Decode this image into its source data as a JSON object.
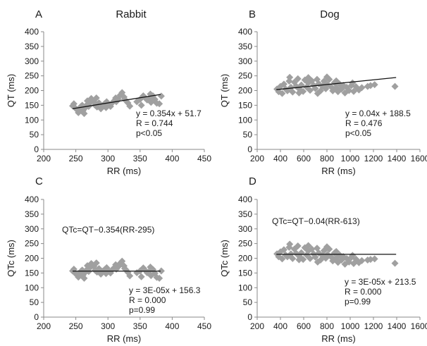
{
  "colors": {
    "marker": "#a0a0a0",
    "trend": "#111111",
    "axis": "#8a8a8a"
  },
  "chart_data": [
    {
      "type": "scatter",
      "panel": "A",
      "title": "Rabbit",
      "xlabel": "RR (ms)",
      "ylabel": "QT (ms)",
      "xlim": [
        200,
        450
      ],
      "ylim": [
        0,
        400
      ],
      "xticks": [
        200,
        250,
        300,
        350,
        400,
        450
      ],
      "yticks": [
        0,
        50,
        100,
        150,
        200,
        250,
        300,
        350,
        400
      ],
      "marker": "diamond",
      "trendline": {
        "slope": 0.354,
        "intercept": 51.7,
        "x_range": [
          245,
          382
        ]
      },
      "annotations": [
        "y = 0.354x + 51.7",
        "R = 0.744",
        "p<0.05"
      ],
      "formula": "",
      "points": [
        [
          245,
          148
        ],
        [
          247,
          155
        ],
        [
          249,
          141
        ],
        [
          252,
          134
        ],
        [
          254,
          125
        ],
        [
          256,
          138
        ],
        [
          258,
          146
        ],
        [
          261,
          131
        ],
        [
          263,
          122
        ],
        [
          265,
          142
        ],
        [
          267,
          151
        ],
        [
          270,
          146
        ],
        [
          272,
          158
        ],
        [
          274,
          173
        ],
        [
          276,
          168
        ],
        [
          278,
          162
        ],
        [
          280,
          150
        ],
        [
          283,
          144
        ],
        [
          286,
          158
        ],
        [
          289,
          138
        ],
        [
          292,
          149
        ],
        [
          295,
          156
        ],
        [
          298,
          162
        ],
        [
          301,
          153
        ],
        [
          304,
          146
        ],
        [
          307,
          159
        ],
        [
          310,
          166
        ],
        [
          313,
          162
        ],
        [
          316,
          171
        ],
        [
          319,
          184
        ],
        [
          322,
          193
        ],
        [
          325,
          178
        ],
        [
          328,
          166
        ],
        [
          331,
          158
        ],
        [
          334,
          147
        ],
        [
          345,
          162
        ],
        [
          350,
          170
        ],
        [
          355,
          182
        ],
        [
          358,
          175
        ],
        [
          361,
          168
        ],
        [
          364,
          173
        ],
        [
          367,
          160
        ],
        [
          370,
          182
        ],
        [
          373,
          170
        ],
        [
          376,
          157
        ],
        [
          380,
          155
        ],
        [
          383,
          181
        ],
        [
          260,
          150
        ],
        [
          268,
          165
        ],
        [
          282,
          175
        ],
        [
          297,
          142
        ],
        [
          312,
          175
        ],
        [
          326,
          170
        ],
        [
          352,
          150
        ],
        [
          366,
          188
        ]
      ]
    },
    {
      "type": "scatter",
      "panel": "B",
      "title": "Dog",
      "xlabel": "RR (ms)",
      "ylabel": "QT (ms)",
      "xlim": [
        200,
        1600
      ],
      "ylim": [
        0,
        400
      ],
      "xticks": [
        200,
        400,
        600,
        800,
        1000,
        1200,
        1400,
        1600
      ],
      "yticks": [
        0,
        50,
        100,
        150,
        200,
        250,
        300,
        350,
        400
      ],
      "marker": "diamond",
      "trendline": {
        "slope": 0.04,
        "intercept": 188.5,
        "x_range": [
          365,
          1395
        ]
      },
      "annotations": [
        "y = 0.04x + 188.5",
        "R = 0.476",
        "p<0.05"
      ],
      "formula": "",
      "points": [
        [
          370,
          205
        ],
        [
          385,
          196
        ],
        [
          400,
          214
        ],
        [
          415,
          190
        ],
        [
          430,
          222
        ],
        [
          445,
          205
        ],
        [
          460,
          199
        ],
        [
          475,
          232
        ],
        [
          490,
          211
        ],
        [
          505,
          195
        ],
        [
          520,
          228
        ],
        [
          535,
          215
        ],
        [
          550,
          240
        ],
        [
          565,
          204
        ],
        [
          580,
          219
        ],
        [
          595,
          197
        ],
        [
          610,
          236
        ],
        [
          625,
          212
        ],
        [
          640,
          226
        ],
        [
          655,
          201
        ],
        [
          670,
          233
        ],
        [
          685,
          218
        ],
        [
          700,
          207
        ],
        [
          715,
          238
        ],
        [
          730,
          223
        ],
        [
          745,
          199
        ],
        [
          760,
          215
        ],
        [
          775,
          232
        ],
        [
          790,
          206
        ],
        [
          805,
          220
        ],
        [
          820,
          238
        ],
        [
          835,
          213
        ],
        [
          850,
          199
        ],
        [
          865,
          227
        ],
        [
          880,
          210
        ],
        [
          895,
          196
        ],
        [
          910,
          222
        ],
        [
          925,
          205
        ],
        [
          940,
          218
        ],
        [
          955,
          192
        ],
        [
          970,
          211
        ],
        [
          990,
          200
        ],
        [
          1010,
          217
        ],
        [
          1030,
          197
        ],
        [
          1050,
          213
        ],
        [
          1075,
          202
        ],
        [
          1100,
          210
        ],
        [
          1150,
          214
        ],
        [
          1175,
          217
        ],
        [
          1210,
          220
        ],
        [
          1385,
          214
        ],
        [
          480,
          245
        ],
        [
          560,
          192
        ],
        [
          640,
          244
        ],
        [
          720,
          190
        ],
        [
          800,
          246
        ],
        [
          880,
          233
        ],
        [
          1020,
          226
        ]
      ]
    },
    {
      "type": "scatter",
      "panel": "C",
      "title": "",
      "xlabel": "RR (ms)",
      "ylabel": "QTc (ms)",
      "xlim": [
        200,
        450
      ],
      "ylim": [
        0,
        400
      ],
      "xticks": [
        200,
        250,
        300,
        350,
        400,
        450
      ],
      "yticks": [
        0,
        50,
        100,
        150,
        200,
        250,
        300,
        350,
        400
      ],
      "marker": "diamond",
      "trendline": {
        "slope": 3e-05,
        "intercept": 156.3,
        "x_range": [
          245,
          382
        ]
      },
      "annotations": [
        "y = 3E-05x + 156.3",
        "R = 0.000",
        "p=0.99"
      ],
      "formula": "QTc=QT−0.354(RR-295)",
      "points": [
        [
          245,
          157
        ],
        [
          247,
          163
        ],
        [
          249,
          149
        ],
        [
          252,
          143
        ],
        [
          254,
          136
        ],
        [
          256,
          150
        ],
        [
          258,
          156
        ],
        [
          261,
          142
        ],
        [
          263,
          132
        ],
        [
          265,
          153
        ],
        [
          267,
          161
        ],
        [
          270,
          155
        ],
        [
          272,
          168
        ],
        [
          274,
          182
        ],
        [
          276,
          178
        ],
        [
          278,
          172
        ],
        [
          280,
          159
        ],
        [
          283,
          153
        ],
        [
          286,
          165
        ],
        [
          289,
          146
        ],
        [
          292,
          156
        ],
        [
          295,
          162
        ],
        [
          298,
          168
        ],
        [
          301,
          158
        ],
        [
          304,
          150
        ],
        [
          307,
          162
        ],
        [
          310,
          168
        ],
        [
          313,
          163
        ],
        [
          316,
          171
        ],
        [
          319,
          183
        ],
        [
          322,
          190
        ],
        [
          325,
          174
        ],
        [
          328,
          161
        ],
        [
          331,
          152
        ],
        [
          334,
          140
        ],
        [
          345,
          151
        ],
        [
          350,
          157
        ],
        [
          355,
          167
        ],
        [
          358,
          159
        ],
        [
          361,
          151
        ],
        [
          364,
          155
        ],
        [
          367,
          141
        ],
        [
          370,
          162
        ],
        [
          373,
          149
        ],
        [
          376,
          135
        ],
        [
          380,
          132
        ],
        [
          383,
          157
        ],
        [
          260,
          160
        ],
        [
          268,
          175
        ],
        [
          282,
          184
        ],
        [
          297,
          148
        ],
        [
          312,
          178
        ],
        [
          326,
          165
        ],
        [
          352,
          137
        ],
        [
          366,
          170
        ]
      ]
    },
    {
      "type": "scatter",
      "panel": "D",
      "title": "",
      "xlabel": "RR (ms)",
      "ylabel": "QTc (ms)",
      "xlim": [
        200,
        1600
      ],
      "ylim": [
        0,
        400
      ],
      "xticks": [
        200,
        400,
        600,
        800,
        1000,
        1200,
        1400,
        1600
      ],
      "yticks": [
        0,
        50,
        100,
        150,
        200,
        250,
        300,
        350,
        400
      ],
      "marker": "diamond",
      "trendline": {
        "slope": 3e-05,
        "intercept": 213.5,
        "x_range": [
          365,
          1395
        ]
      },
      "annotations": [
        "y = 3E-05x + 213.5",
        "R = 0.000",
        "p=0.99"
      ],
      "formula": "QTc=QT−0.04(RR-613)",
      "points": [
        [
          370,
          215
        ],
        [
          385,
          205
        ],
        [
          400,
          222
        ],
        [
          415,
          198
        ],
        [
          430,
          229
        ],
        [
          445,
          211
        ],
        [
          460,
          205
        ],
        [
          475,
          237
        ],
        [
          490,
          215
        ],
        [
          505,
          199
        ],
        [
          520,
          231
        ],
        [
          535,
          217
        ],
        [
          550,
          242
        ],
        [
          565,
          205
        ],
        [
          580,
          219
        ],
        [
          595,
          196
        ],
        [
          610,
          236
        ],
        [
          625,
          211
        ],
        [
          640,
          225
        ],
        [
          655,
          199
        ],
        [
          670,
          231
        ],
        [
          685,
          215
        ],
        [
          700,
          204
        ],
        [
          715,
          234
        ],
        [
          730,
          218
        ],
        [
          745,
          194
        ],
        [
          760,
          210
        ],
        [
          775,
          226
        ],
        [
          790,
          200
        ],
        [
          805,
          213
        ],
        [
          820,
          231
        ],
        [
          835,
          205
        ],
        [
          850,
          191
        ],
        [
          865,
          218
        ],
        [
          880,
          200
        ],
        [
          895,
          186
        ],
        [
          910,
          211
        ],
        [
          925,
          194
        ],
        [
          940,
          206
        ],
        [
          955,
          180
        ],
        [
          970,
          199
        ],
        [
          990,
          187
        ],
        [
          1010,
          203
        ],
        [
          1030,
          182
        ],
        [
          1050,
          197
        ],
        [
          1075,
          185
        ],
        [
          1100,
          192
        ],
        [
          1150,
          194
        ],
        [
          1175,
          196
        ],
        [
          1210,
          198
        ],
        [
          1385,
          183
        ],
        [
          480,
          248
        ],
        [
          560,
          195
        ],
        [
          640,
          243
        ],
        [
          720,
          187
        ],
        [
          800,
          239
        ],
        [
          880,
          223
        ],
        [
          1020,
          210
        ]
      ]
    }
  ]
}
